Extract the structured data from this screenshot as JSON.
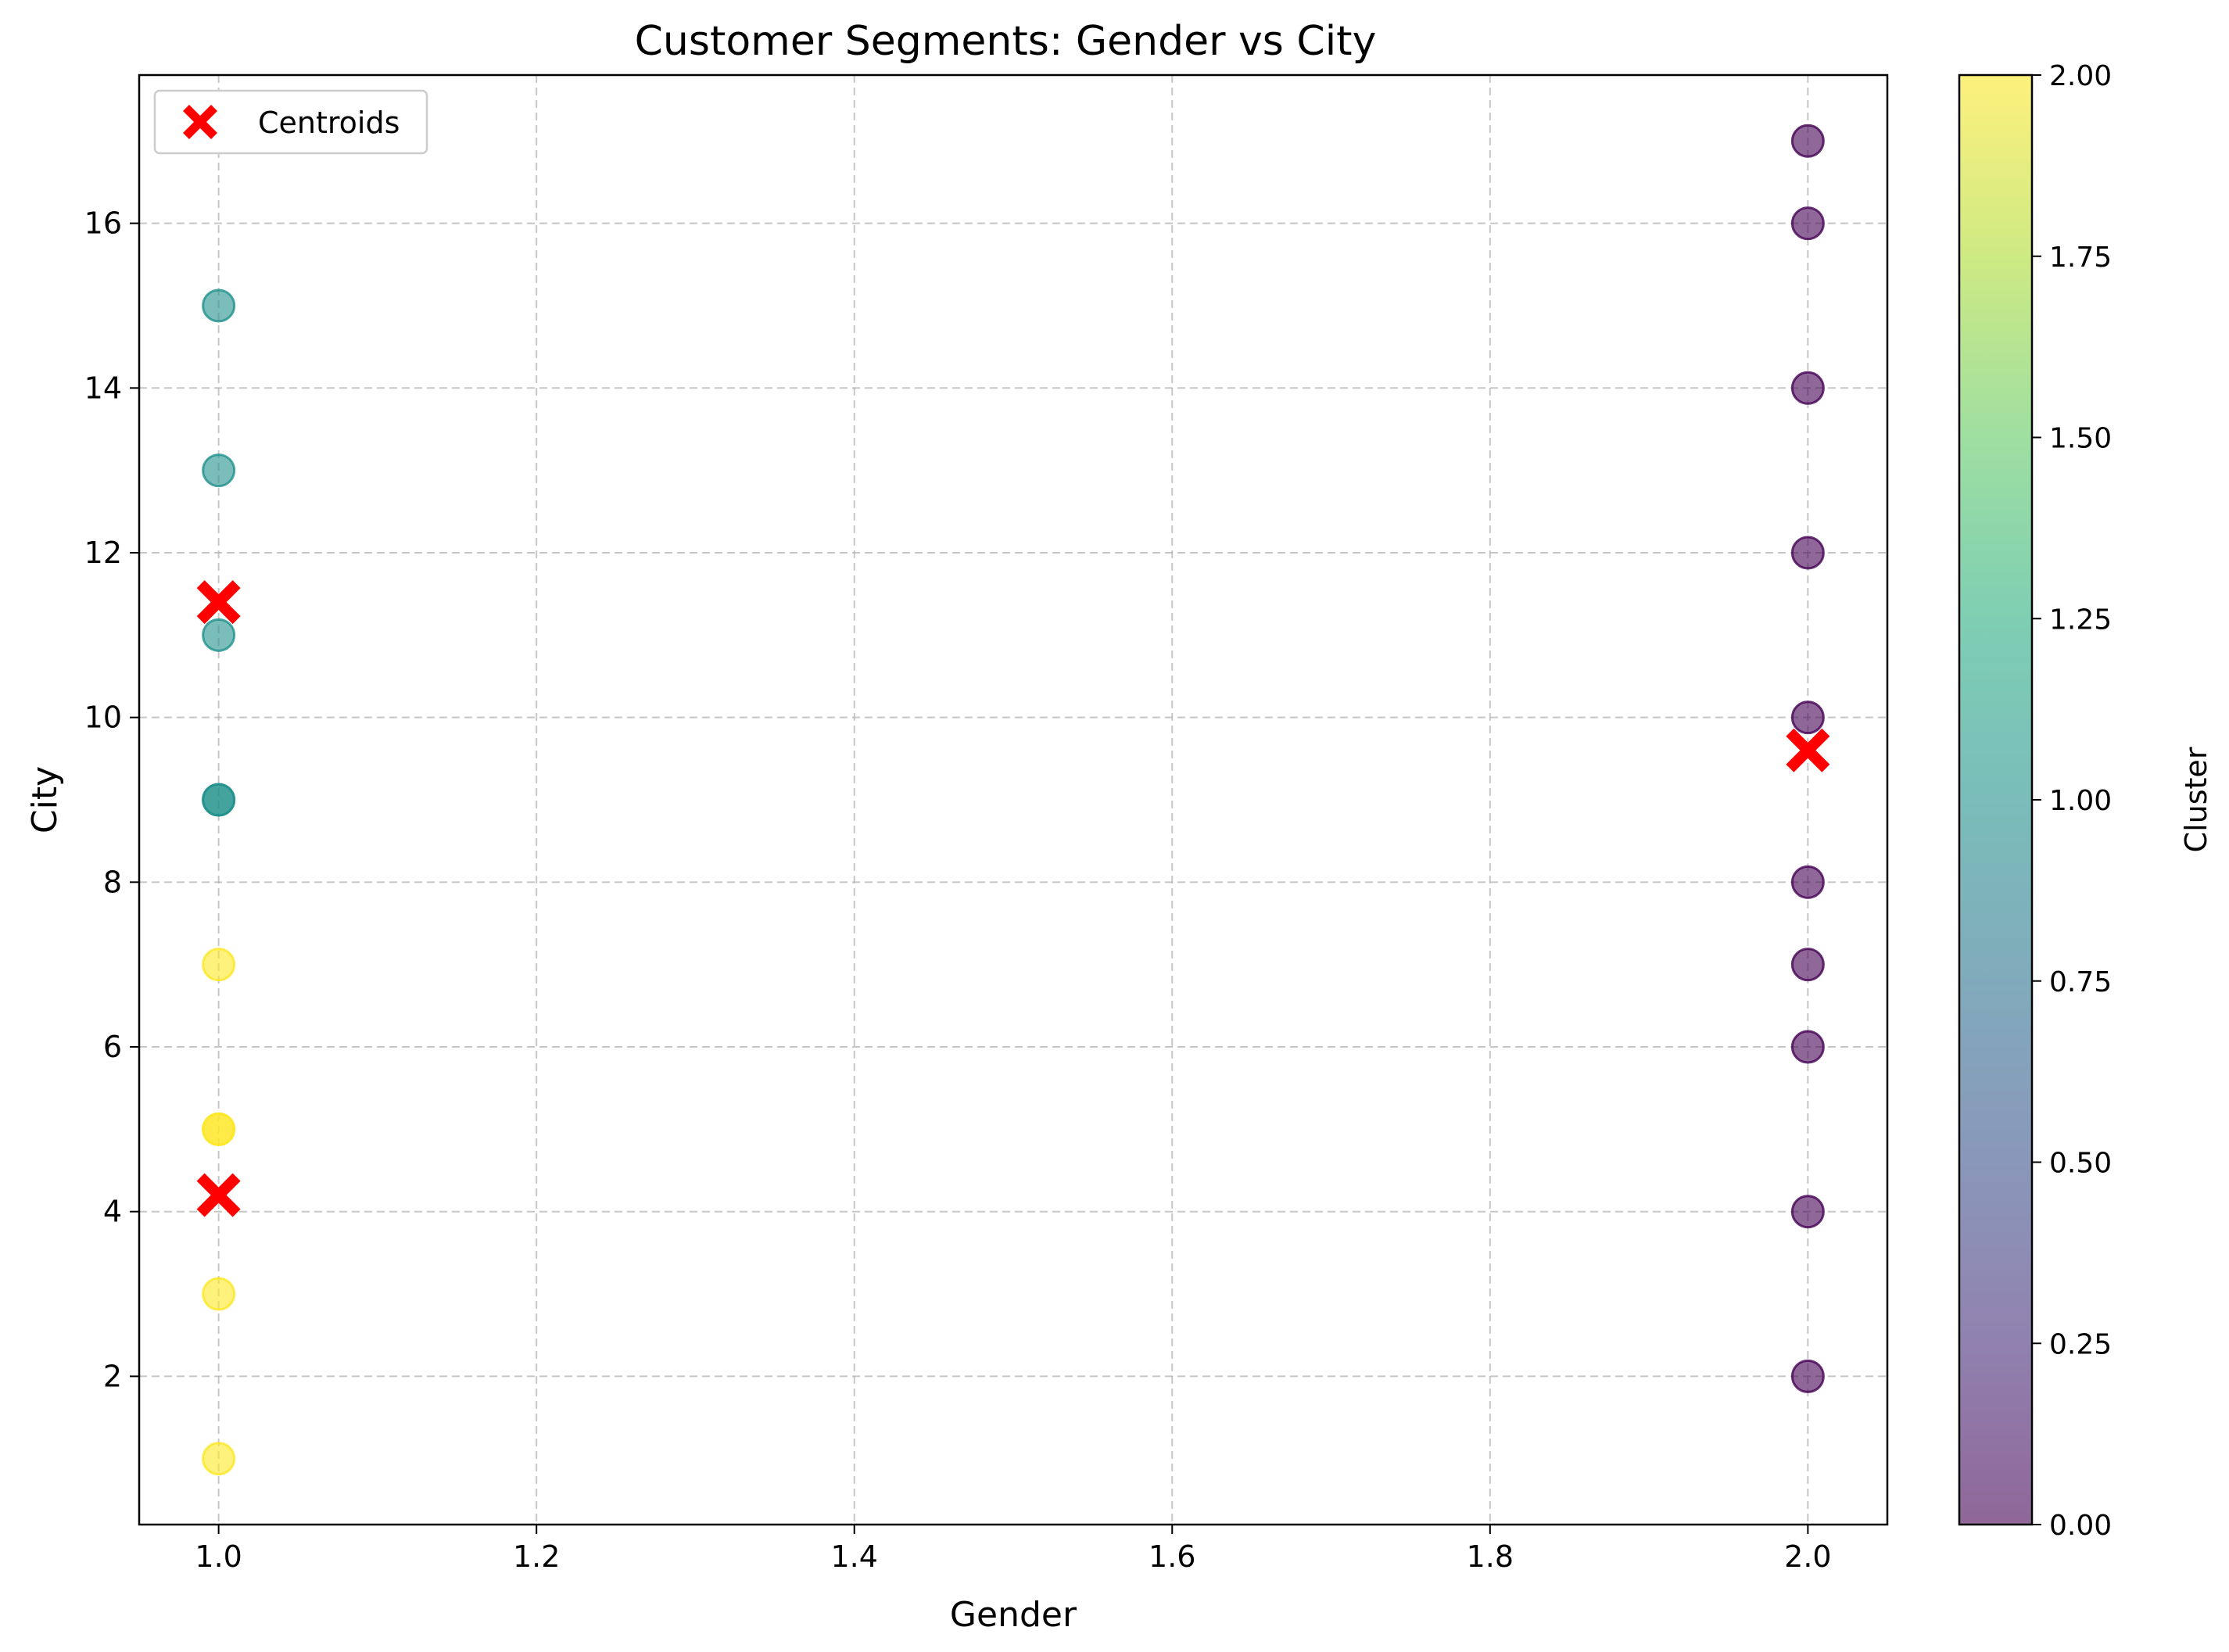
{
  "chart_data": {
    "type": "scatter",
    "title": "Customer Segments: Gender vs City",
    "xlabel": "Gender",
    "ylabel": "City",
    "xlim": [
      0.95,
      2.05
    ],
    "ylim": [
      0.2,
      17.8
    ],
    "xticks": [
      1.0,
      1.2,
      1.4,
      1.6,
      1.8,
      2.0
    ],
    "xtick_labels": [
      "1.0",
      "1.2",
      "1.4",
      "1.6",
      "1.8",
      "2.0"
    ],
    "yticks": [
      2,
      4,
      6,
      8,
      10,
      12,
      14,
      16
    ],
    "ytick_labels": [
      "2",
      "4",
      "6",
      "8",
      "10",
      "12",
      "14",
      "16"
    ],
    "grid": true,
    "legend_position": "top-left",
    "legend": [
      "Centroids"
    ],
    "points": [
      {
        "x": 2,
        "y": 17,
        "cluster": 0
      },
      {
        "x": 2,
        "y": 16,
        "cluster": 0
      },
      {
        "x": 2,
        "y": 14,
        "cluster": 0
      },
      {
        "x": 2,
        "y": 12,
        "cluster": 0
      },
      {
        "x": 2,
        "y": 10,
        "cluster": 0
      },
      {
        "x": 2,
        "y": 8,
        "cluster": 0
      },
      {
        "x": 2,
        "y": 7,
        "cluster": 0
      },
      {
        "x": 2,
        "y": 6,
        "cluster": 0
      },
      {
        "x": 2,
        "y": 4,
        "cluster": 0
      },
      {
        "x": 2,
        "y": 2,
        "cluster": 0
      },
      {
        "x": 1,
        "y": 15,
        "cluster": 1
      },
      {
        "x": 1,
        "y": 13,
        "cluster": 1
      },
      {
        "x": 1,
        "y": 11,
        "cluster": 1
      },
      {
        "x": 1,
        "y": 9,
        "cluster": 1
      },
      {
        "x": 1,
        "y": 9,
        "cluster": 1
      },
      {
        "x": 1,
        "y": 7,
        "cluster": 2
      },
      {
        "x": 1,
        "y": 5,
        "cluster": 2
      },
      {
        "x": 1,
        "y": 5,
        "cluster": 2
      },
      {
        "x": 1,
        "y": 3,
        "cluster": 2
      },
      {
        "x": 1,
        "y": 1,
        "cluster": 2
      }
    ],
    "centroids": [
      {
        "x": 2,
        "y": 9.6
      },
      {
        "x": 1,
        "y": 11.4
      },
      {
        "x": 1,
        "y": 4.2
      }
    ],
    "colorbar": {
      "label": "Cluster",
      "min": 0.0,
      "max": 2.0,
      "ticks": [
        0.0,
        0.25,
        0.5,
        0.75,
        1.0,
        1.25,
        1.5,
        1.75,
        2.0
      ],
      "tick_labels": [
        "0.00",
        "0.25",
        "0.50",
        "0.75",
        "1.00",
        "1.25",
        "1.50",
        "1.75",
        "2.00"
      ],
      "colormap": "viridis"
    },
    "colors": {
      "cluster_0": "#440154",
      "cluster_1": "#21918c",
      "cluster_2": "#fde725",
      "centroid": "#ff0000",
      "grid": "#b0b0b0"
    },
    "marker_alpha": 0.6
  }
}
